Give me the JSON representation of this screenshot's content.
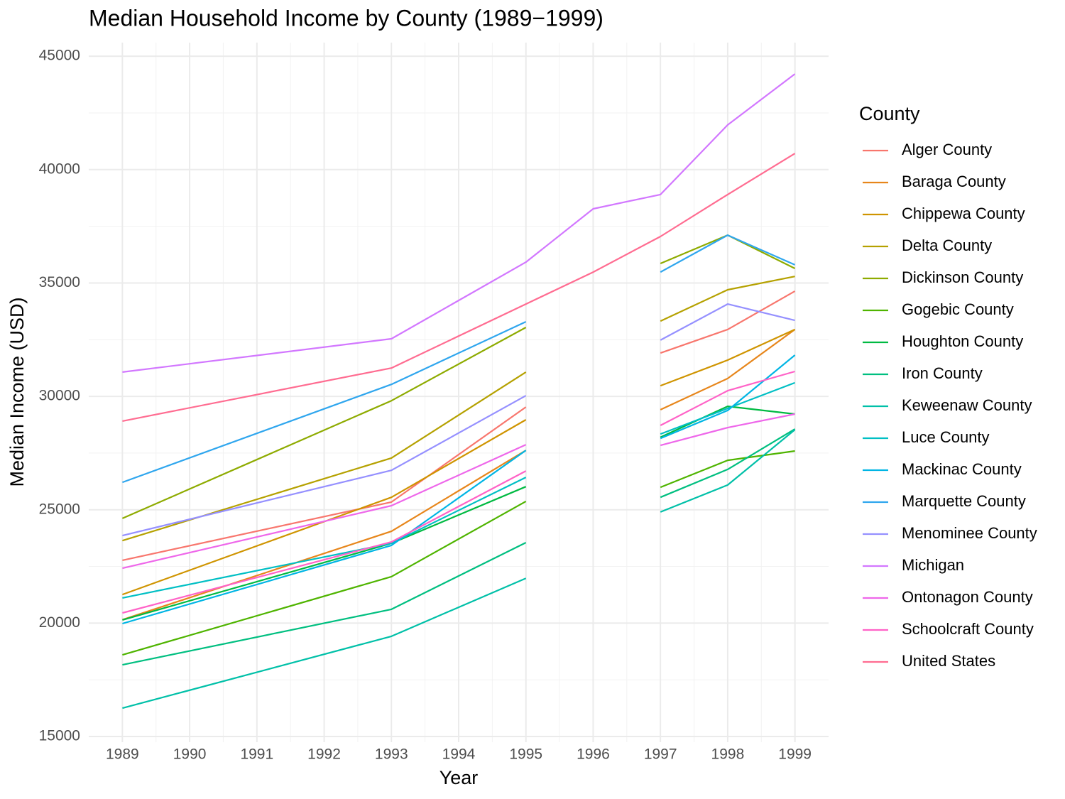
{
  "chart_data": {
    "type": "line",
    "title": "Median Household Income by County (1989−1999)",
    "x_label": "Year",
    "y_label": "Median Income (USD)",
    "legend_title": "County",
    "x": [
      1989,
      1993,
      1995,
      1996,
      1997,
      1998,
      1999
    ],
    "xlim": [
      1988.5,
      1999.5
    ],
    "xticks": [
      1989,
      1990,
      1991,
      1992,
      1993,
      1994,
      1995,
      1996,
      1997,
      1998,
      1999
    ],
    "ylim": [
      14750,
      45600
    ],
    "yticks": [
      15000,
      20000,
      25000,
      30000,
      35000,
      40000,
      45000
    ],
    "grid": true,
    "legend": "right",
    "series": [
      {
        "name": "Alger County",
        "color": "#F8766D",
        "values": [
          22770,
          25340,
          29530,
          null,
          31910,
          32950,
          34640
        ]
      },
      {
        "name": "Baraga County",
        "color": "#E7861B",
        "values": [
          20150,
          24050,
          27620,
          null,
          29410,
          30790,
          32950
        ]
      },
      {
        "name": "Chippewa County",
        "color": "#CF9400",
        "values": [
          21260,
          25550,
          28970,
          null,
          30470,
          31600,
          32950
        ]
      },
      {
        "name": "Delta County",
        "color": "#B5A100",
        "values": [
          23640,
          27280,
          31070,
          null,
          33320,
          34700,
          35290
        ]
      },
      {
        "name": "Dickinson County",
        "color": "#8EAB00",
        "values": [
          24620,
          29810,
          33040,
          null,
          35860,
          37110,
          35640
        ]
      },
      {
        "name": "Gogebic County",
        "color": "#4FB400",
        "values": [
          18600,
          22050,
          25370,
          null,
          25990,
          27180,
          27590
        ]
      },
      {
        "name": "Houghton County",
        "color": "#00BA42",
        "values": [
          20140,
          23520,
          26020,
          null,
          28200,
          29560,
          29220
        ]
      },
      {
        "name": "Iron County",
        "color": "#00BF80",
        "values": [
          18160,
          20610,
          23550,
          null,
          25550,
          26780,
          28560
        ]
      },
      {
        "name": "Keweenaw County",
        "color": "#00C0A8",
        "values": [
          16250,
          19420,
          21980,
          null,
          24900,
          26090,
          28530
        ]
      },
      {
        "name": "Luce County",
        "color": "#00BFC4",
        "values": [
          21110,
          23520,
          26430,
          null,
          28340,
          29470,
          30600
        ]
      },
      {
        "name": "Mackinac County",
        "color": "#00B5E4",
        "values": [
          19980,
          23430,
          27620,
          null,
          28150,
          29380,
          31820
        ]
      },
      {
        "name": "Marquette County",
        "color": "#2FA6EE",
        "values": [
          26210,
          30530,
          33290,
          null,
          35480,
          37110,
          35800
        ]
      },
      {
        "name": "Menominee County",
        "color": "#9590FF",
        "values": [
          23860,
          26740,
          30030,
          null,
          32480,
          34070,
          33350
        ]
      },
      {
        "name": "Michigan",
        "color": "#D277FF",
        "values": [
          31070,
          32540,
          35920,
          38270,
          38900,
          41970,
          44220
        ]
      },
      {
        "name": "Ontonagon County",
        "color": "#EE67EA",
        "values": [
          22420,
          25180,
          27870,
          null,
          27840,
          28620,
          29220
        ]
      },
      {
        "name": "Schoolcraft County",
        "color": "#FF62C7",
        "values": [
          20450,
          23580,
          26710,
          null,
          28720,
          30250,
          31100
        ]
      },
      {
        "name": "United States",
        "color": "#FF6C91",
        "values": [
          28910,
          31250,
          34070,
          35480,
          37050,
          38900,
          40710
        ]
      }
    ]
  }
}
